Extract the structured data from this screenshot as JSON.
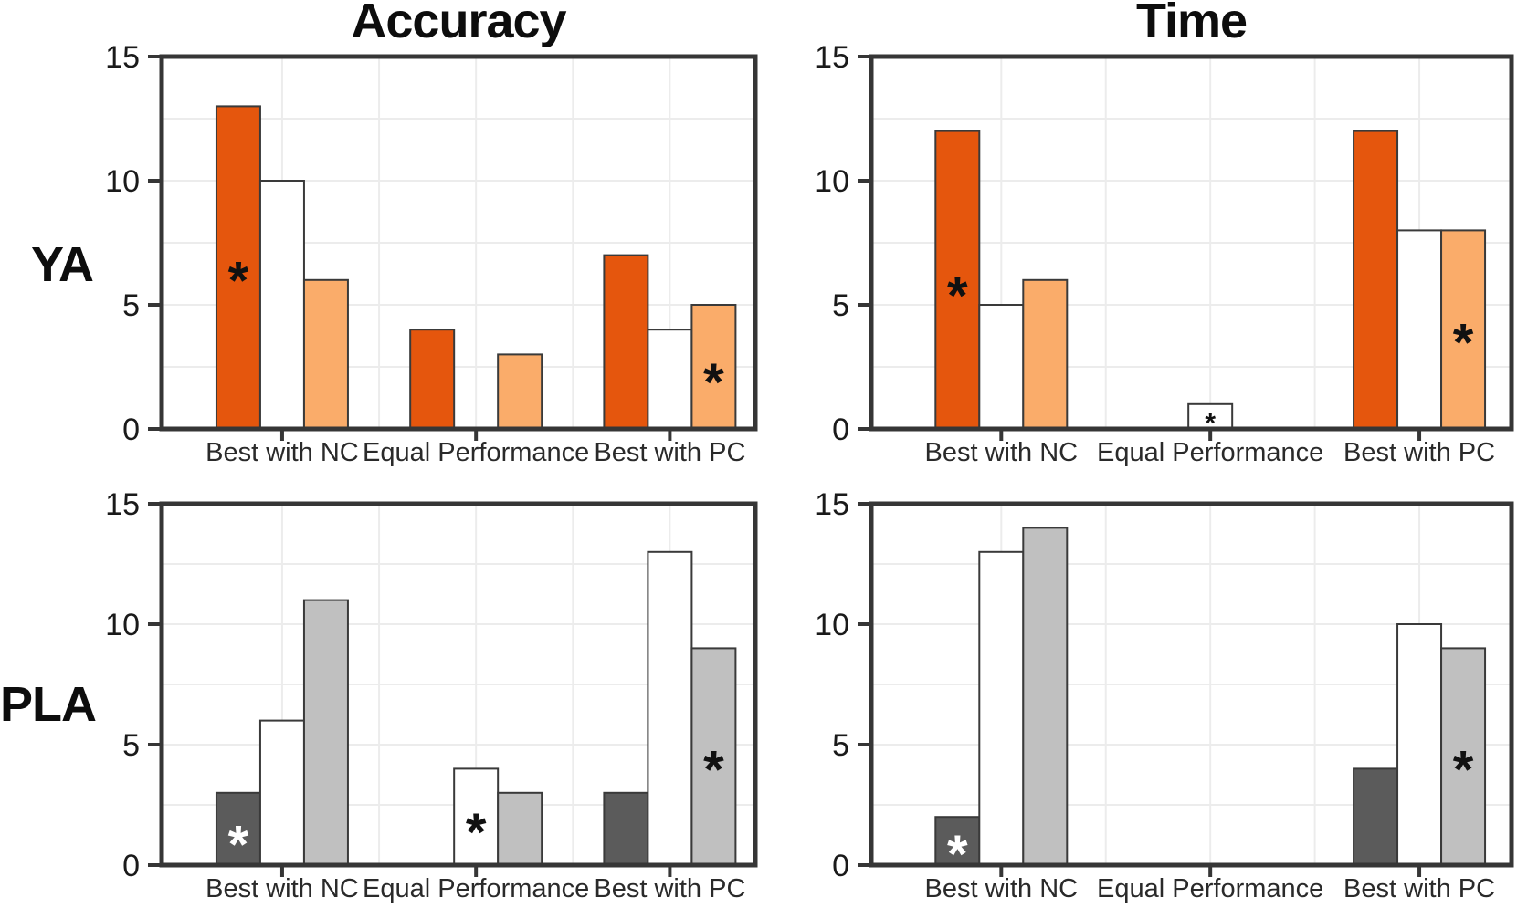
{
  "figure": {
    "col_titles": [
      {
        "label": "Accuracy"
      },
      {
        "label": "Time"
      }
    ],
    "row_labels": [
      {
        "label": "YA"
      },
      {
        "label": "PLA"
      }
    ],
    "colors": {
      "dark_orange": "#E5560D",
      "light_orange": "#FAAC6A",
      "white": "#FFFFFF",
      "dark_gray": "#5B5B5B",
      "light_gray": "#C0C0C0",
      "bar_outline": "#3A3A3A",
      "panel_border": "#363636",
      "gridline": "#ECECEC",
      "tick_text": "#1A1A1A",
      "annotation_black": "#111111",
      "annotation_white": "#FFFFFF"
    }
  },
  "chart_data": [
    {
      "type": "bar",
      "row": "YA",
      "col": "Accuracy",
      "categories": [
        "Best with NC",
        "Equal Performance",
        "Best with PC"
      ],
      "ylim": [
        0,
        15
      ],
      "yticks": [
        0,
        5,
        10,
        15
      ],
      "grid_y": [
        2.5,
        5,
        7.5,
        10,
        12.5
      ],
      "series": [
        {
          "name": "dark-orange",
          "color_key": "dark_orange",
          "values": [
            13,
            4,
            7
          ]
        },
        {
          "name": "white",
          "color_key": "white",
          "values": [
            10,
            0,
            4
          ]
        },
        {
          "name": "light-orange",
          "color_key": "light_orange",
          "values": [
            6,
            3,
            5
          ]
        }
      ],
      "annotations": [
        {
          "category_index": 0,
          "series_index": 0,
          "y": 6.3,
          "symbol": "*",
          "color": "#111111",
          "size": "large"
        },
        {
          "category_index": 2,
          "series_index": 2,
          "y": 2.2,
          "symbol": "*",
          "color": "#111111",
          "size": "large"
        }
      ]
    },
    {
      "type": "bar",
      "row": "YA",
      "col": "Time",
      "categories": [
        "Best with NC",
        "Equal Performance",
        "Best with PC"
      ],
      "ylim": [
        0,
        15
      ],
      "yticks": [
        0,
        5,
        10,
        15
      ],
      "grid_y": [
        2.5,
        5,
        7.5,
        10,
        12.5
      ],
      "series": [
        {
          "name": "dark-orange",
          "color_key": "dark_orange",
          "values": [
            12,
            0,
            12
          ]
        },
        {
          "name": "white",
          "color_key": "white",
          "values": [
            5,
            1,
            8
          ]
        },
        {
          "name": "light-orange",
          "color_key": "light_orange",
          "values": [
            6,
            0,
            8
          ]
        }
      ],
      "annotations": [
        {
          "category_index": 0,
          "series_index": 0,
          "y": 5.7,
          "symbol": "*",
          "color": "#111111",
          "size": "large"
        },
        {
          "category_index": 1,
          "series_index": 1,
          "y": 0.42,
          "symbol": "*",
          "color": "#111111",
          "size": "small"
        },
        {
          "category_index": 2,
          "series_index": 2,
          "y": 3.8,
          "symbol": "*",
          "color": "#111111",
          "size": "large"
        }
      ]
    },
    {
      "type": "bar",
      "row": "PLA",
      "col": "Accuracy",
      "categories": [
        "Best with NC",
        "Equal Performance",
        "Best with PC"
      ],
      "ylim": [
        0,
        15
      ],
      "yticks": [
        0,
        5,
        10,
        15
      ],
      "grid_y": [
        2.5,
        5,
        7.5,
        10,
        12.5
      ],
      "series": [
        {
          "name": "dark-gray",
          "color_key": "dark_gray",
          "values": [
            3,
            0,
            3
          ]
        },
        {
          "name": "white",
          "color_key": "white",
          "values": [
            6,
            4,
            13
          ]
        },
        {
          "name": "light-gray",
          "color_key": "light_gray",
          "values": [
            11,
            3,
            9
          ]
        }
      ],
      "annotations": [
        {
          "category_index": 0,
          "series_index": 0,
          "y": 1.2,
          "symbol": "*",
          "color": "#FFFFFF",
          "size": "large"
        },
        {
          "category_index": 1,
          "series_index": 1,
          "y": 1.7,
          "symbol": "*",
          "color": "#111111",
          "size": "large"
        },
        {
          "category_index": 2,
          "series_index": 2,
          "y": 4.3,
          "symbol": "*",
          "color": "#111111",
          "size": "large"
        }
      ]
    },
    {
      "type": "bar",
      "row": "PLA",
      "col": "Time",
      "categories": [
        "Best with NC",
        "Equal Performance",
        "Best with PC"
      ],
      "ylim": [
        0,
        15
      ],
      "yticks": [
        0,
        5,
        10,
        15
      ],
      "grid_y": [
        2.5,
        5,
        7.5,
        10,
        12.5
      ],
      "series": [
        {
          "name": "dark-gray",
          "color_key": "dark_gray",
          "values": [
            2,
            0,
            4
          ]
        },
        {
          "name": "white",
          "color_key": "white",
          "values": [
            13,
            0,
            10
          ]
        },
        {
          "name": "light-gray",
          "color_key": "light_gray",
          "values": [
            14,
            0,
            9
          ]
        }
      ],
      "annotations": [
        {
          "category_index": 0,
          "series_index": 0,
          "y": 0.8,
          "symbol": "*",
          "color": "#FFFFFF",
          "size": "large"
        },
        {
          "category_index": 2,
          "series_index": 2,
          "y": 4.3,
          "symbol": "*",
          "color": "#111111",
          "size": "large"
        }
      ]
    }
  ]
}
